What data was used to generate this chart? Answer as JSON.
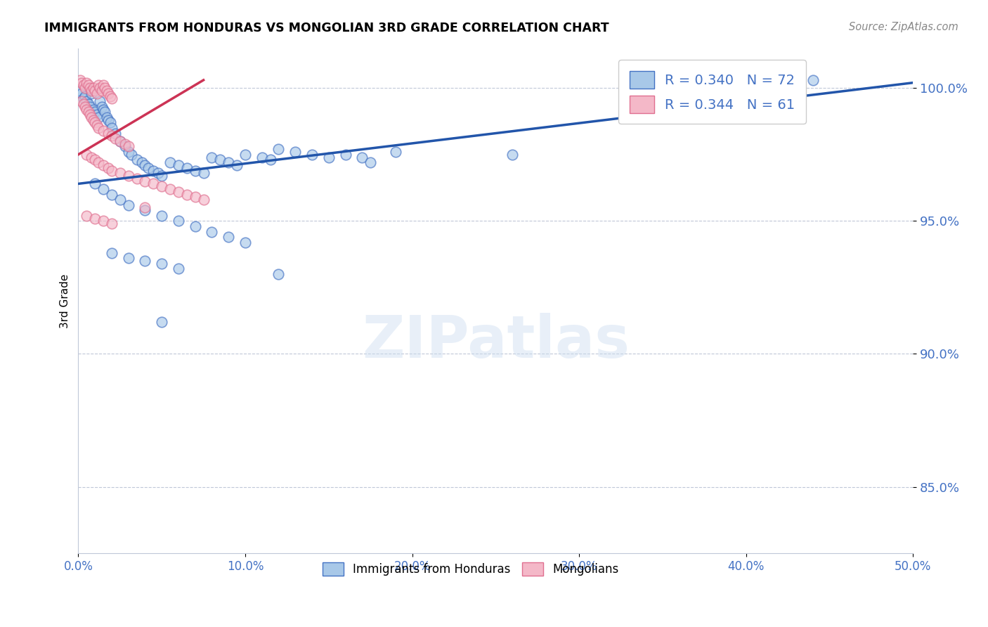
{
  "title": "IMMIGRANTS FROM HONDURAS VS MONGOLIAN 3RD GRADE CORRELATION CHART",
  "source": "Source: ZipAtlas.com",
  "ylabel": "3rd Grade",
  "xlim": [
    0.0,
    0.5
  ],
  "ylim": [
    0.825,
    1.015
  ],
  "y_ticks": [
    0.85,
    0.9,
    0.95,
    1.0
  ],
  "y_tick_labels": [
    "85.0%",
    "90.0%",
    "95.0%",
    "100.0%"
  ],
  "x_ticks": [
    0.0,
    0.1,
    0.2,
    0.3,
    0.4,
    0.5
  ],
  "x_tick_labels": [
    "0.0%",
    "10.0%",
    "20.0%",
    "30.0%",
    "40.0%",
    "50.0%"
  ],
  "blue_fill": "#a8c8e8",
  "blue_edge": "#4472c4",
  "pink_fill": "#f4b8c8",
  "pink_edge": "#e07090",
  "blue_line_color": "#2255aa",
  "pink_line_color": "#cc3355",
  "axis_color": "#4472c4",
  "legend_text_color": "#4472c4",
  "blue_trend": [
    0.0,
    0.5,
    0.964,
    1.002
  ],
  "pink_trend": [
    0.0,
    0.075,
    0.975,
    1.003
  ],
  "blue_points": [
    [
      0.001,
      0.999
    ],
    [
      0.002,
      0.998
    ],
    [
      0.003,
      0.996
    ],
    [
      0.004,
      0.997
    ],
    [
      0.005,
      0.995
    ],
    [
      0.006,
      0.994
    ],
    [
      0.007,
      0.993
    ],
    [
      0.008,
      0.998
    ],
    [
      0.009,
      0.992
    ],
    [
      0.01,
      0.991
    ],
    [
      0.011,
      0.99
    ],
    [
      0.012,
      0.989
    ],
    [
      0.013,
      0.995
    ],
    [
      0.014,
      0.993
    ],
    [
      0.015,
      0.992
    ],
    [
      0.016,
      0.991
    ],
    [
      0.017,
      0.989
    ],
    [
      0.018,
      0.988
    ],
    [
      0.019,
      0.987
    ],
    [
      0.02,
      0.985
    ],
    [
      0.022,
      0.983
    ],
    [
      0.025,
      0.98
    ],
    [
      0.028,
      0.978
    ],
    [
      0.03,
      0.976
    ],
    [
      0.032,
      0.975
    ],
    [
      0.035,
      0.973
    ],
    [
      0.038,
      0.972
    ],
    [
      0.04,
      0.971
    ],
    [
      0.042,
      0.97
    ],
    [
      0.045,
      0.969
    ],
    [
      0.048,
      0.968
    ],
    [
      0.05,
      0.967
    ],
    [
      0.055,
      0.972
    ],
    [
      0.06,
      0.971
    ],
    [
      0.065,
      0.97
    ],
    [
      0.07,
      0.969
    ],
    [
      0.075,
      0.968
    ],
    [
      0.08,
      0.974
    ],
    [
      0.085,
      0.973
    ],
    [
      0.09,
      0.972
    ],
    [
      0.095,
      0.971
    ],
    [
      0.1,
      0.975
    ],
    [
      0.11,
      0.974
    ],
    [
      0.115,
      0.973
    ],
    [
      0.12,
      0.977
    ],
    [
      0.13,
      0.976
    ],
    [
      0.14,
      0.975
    ],
    [
      0.15,
      0.974
    ],
    [
      0.16,
      0.975
    ],
    [
      0.17,
      0.974
    ],
    [
      0.175,
      0.972
    ],
    [
      0.19,
      0.976
    ],
    [
      0.01,
      0.964
    ],
    [
      0.015,
      0.962
    ],
    [
      0.02,
      0.96
    ],
    [
      0.025,
      0.958
    ],
    [
      0.03,
      0.956
    ],
    [
      0.04,
      0.954
    ],
    [
      0.05,
      0.952
    ],
    [
      0.06,
      0.95
    ],
    [
      0.07,
      0.948
    ],
    [
      0.08,
      0.946
    ],
    [
      0.09,
      0.944
    ],
    [
      0.1,
      0.942
    ],
    [
      0.02,
      0.938
    ],
    [
      0.03,
      0.936
    ],
    [
      0.04,
      0.935
    ],
    [
      0.05,
      0.934
    ],
    [
      0.06,
      0.932
    ],
    [
      0.12,
      0.93
    ],
    [
      0.05,
      0.912
    ],
    [
      0.26,
      0.975
    ],
    [
      0.43,
      1.001
    ],
    [
      0.44,
      1.003
    ]
  ],
  "pink_points": [
    [
      0.001,
      1.003
    ],
    [
      0.002,
      1.002
    ],
    [
      0.003,
      1.001
    ],
    [
      0.004,
      1.0
    ],
    [
      0.005,
      1.002
    ],
    [
      0.006,
      1.001
    ],
    [
      0.007,
      1.0
    ],
    [
      0.008,
      0.999
    ],
    [
      0.009,
      1.0
    ],
    [
      0.01,
      0.999
    ],
    [
      0.011,
      0.998
    ],
    [
      0.012,
      1.001
    ],
    [
      0.013,
      1.0
    ],
    [
      0.014,
      0.999
    ],
    [
      0.015,
      1.001
    ],
    [
      0.016,
      1.0
    ],
    [
      0.017,
      0.999
    ],
    [
      0.018,
      0.998
    ],
    [
      0.019,
      0.997
    ],
    [
      0.02,
      0.996
    ],
    [
      0.002,
      0.995
    ],
    [
      0.003,
      0.994
    ],
    [
      0.004,
      0.993
    ],
    [
      0.005,
      0.992
    ],
    [
      0.006,
      0.991
    ],
    [
      0.007,
      0.99
    ],
    [
      0.008,
      0.989
    ],
    [
      0.009,
      0.988
    ],
    [
      0.01,
      0.987
    ],
    [
      0.011,
      0.986
    ],
    [
      0.012,
      0.985
    ],
    [
      0.015,
      0.984
    ],
    [
      0.018,
      0.983
    ],
    [
      0.02,
      0.982
    ],
    [
      0.022,
      0.981
    ],
    [
      0.025,
      0.98
    ],
    [
      0.028,
      0.979
    ],
    [
      0.03,
      0.978
    ],
    [
      0.005,
      0.975
    ],
    [
      0.008,
      0.974
    ],
    [
      0.01,
      0.973
    ],
    [
      0.012,
      0.972
    ],
    [
      0.015,
      0.971
    ],
    [
      0.018,
      0.97
    ],
    [
      0.02,
      0.969
    ],
    [
      0.025,
      0.968
    ],
    [
      0.03,
      0.967
    ],
    [
      0.035,
      0.966
    ],
    [
      0.04,
      0.965
    ],
    [
      0.045,
      0.964
    ],
    [
      0.05,
      0.963
    ],
    [
      0.055,
      0.962
    ],
    [
      0.06,
      0.961
    ],
    [
      0.065,
      0.96
    ],
    [
      0.07,
      0.959
    ],
    [
      0.075,
      0.958
    ],
    [
      0.005,
      0.952
    ],
    [
      0.01,
      0.951
    ],
    [
      0.015,
      0.95
    ],
    [
      0.02,
      0.949
    ],
    [
      0.04,
      0.955
    ]
  ]
}
